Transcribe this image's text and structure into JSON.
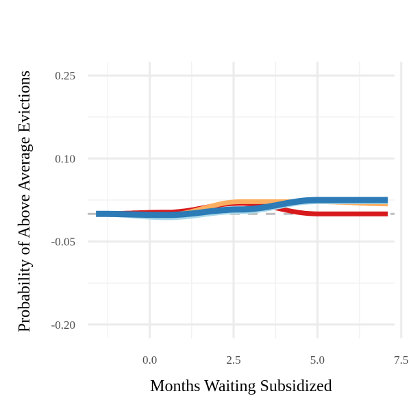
{
  "chart_data": {
    "type": "line",
    "title": "",
    "xlabel": "Months Waiting Subsidized",
    "ylabel": "Probability of Above Average Evictions",
    "xlim": [
      -1.85,
      7.3
    ],
    "ylim": [
      -0.225,
      0.275
    ],
    "x_ticks": [
      0.0,
      2.5,
      5.0,
      7.5
    ],
    "x_tick_labels": [
      "0.0",
      "2.5",
      "5.0",
      "7.5"
    ],
    "y_ticks": [
      -0.2,
      -0.05,
      0.1,
      0.25
    ],
    "y_tick_labels": [
      "-0.20",
      "-0.05",
      "0.10",
      "0.25"
    ],
    "grid": true,
    "legend": "none",
    "reference_line": {
      "y": 0.0,
      "style": "dashed",
      "color": "#bdbdbd"
    },
    "series": [
      {
        "color": "#d7191c",
        "points": [
          [
            -1.6,
            0.0
          ],
          [
            0.5,
            0.003
          ],
          [
            2.7,
            0.019
          ],
          [
            5.0,
            0.0
          ],
          [
            7.1,
            0.0
          ]
        ]
      },
      {
        "color": "#fdae61",
        "points": [
          [
            -1.6,
            0.0
          ],
          [
            0.5,
            -0.002
          ],
          [
            2.7,
            0.022
          ],
          [
            5.0,
            0.022
          ],
          [
            7.1,
            0.018
          ]
        ]
      },
      {
        "color": "#abd9e9",
        "points": [
          [
            -1.6,
            0.0
          ],
          [
            0.5,
            -0.007
          ],
          [
            2.7,
            0.004
          ],
          [
            5.0,
            0.022
          ],
          [
            7.1,
            0.022
          ]
        ]
      },
      {
        "color": "#2c7bb6",
        "points": [
          [
            -1.6,
            0.0
          ],
          [
            0.5,
            -0.002
          ],
          [
            2.7,
            0.008
          ],
          [
            5.0,
            0.025
          ],
          [
            7.1,
            0.025
          ]
        ]
      }
    ]
  }
}
